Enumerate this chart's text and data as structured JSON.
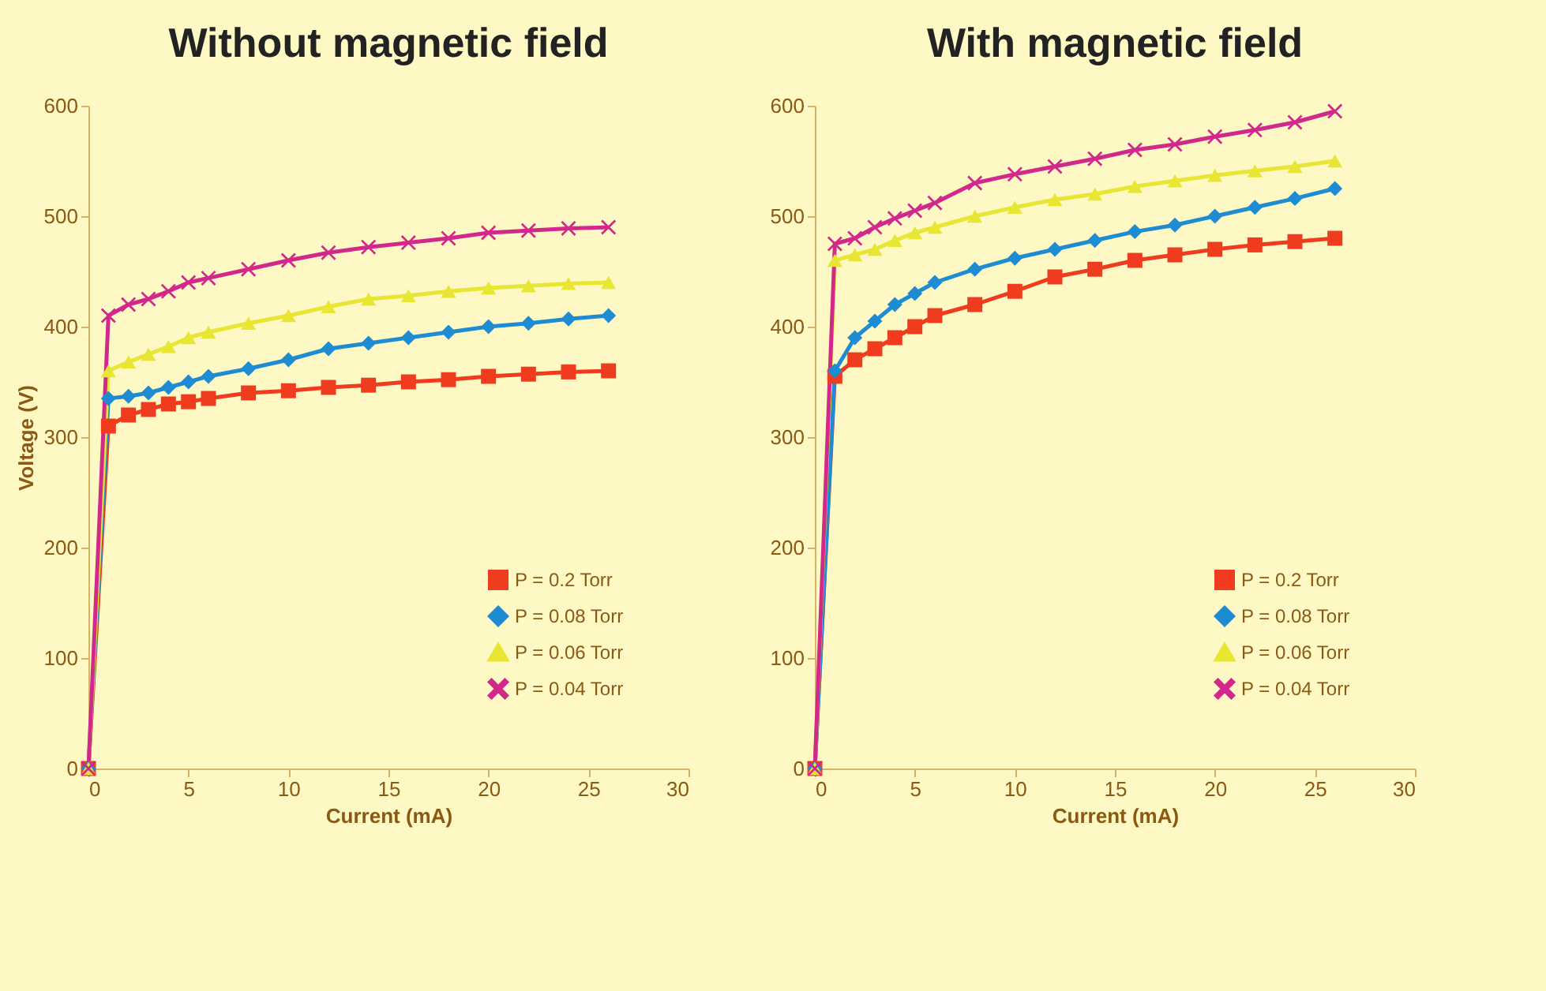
{
  "chart_data": [
    {
      "type": "line",
      "title": "Without magnetic field",
      "xlabel": "Current (mA)",
      "ylabel": "Voltage (V)",
      "x": [
        0,
        1,
        2,
        3,
        4,
        5,
        6,
        8,
        10,
        12,
        14,
        16,
        18,
        20,
        22,
        24,
        26
      ],
      "xlim": [
        0,
        30
      ],
      "xticks": [
        0,
        5,
        10,
        15,
        20,
        25,
        30
      ],
      "ylim": [
        0,
        600
      ],
      "yticks": [
        0,
        100,
        200,
        300,
        400,
        500,
        600
      ],
      "legend": "bottom right",
      "series": [
        {
          "name": "P = 0.2 Torr",
          "color": "#f03c1e",
          "marker": "square",
          "values": [
            0,
            310,
            320,
            325,
            330,
            332,
            335,
            340,
            342,
            345,
            347,
            350,
            352,
            355,
            357,
            359,
            360
          ]
        },
        {
          "name": "P = 0.08 Torr",
          "color": "#1e8cd2",
          "marker": "diamond",
          "values": [
            0,
            335,
            337,
            340,
            345,
            350,
            355,
            362,
            370,
            380,
            385,
            390,
            395,
            400,
            403,
            407,
            410
          ]
        },
        {
          "name": "P = 0.06 Torr",
          "color": "#e8e632",
          "marker": "triangle",
          "values": [
            0,
            360,
            368,
            375,
            382,
            390,
            395,
            403,
            410,
            418,
            425,
            428,
            432,
            435,
            437,
            439,
            440
          ]
        },
        {
          "name": "P = 0.04 Torr",
          "color": "#d2288c",
          "marker": "cross",
          "values": [
            0,
            410,
            420,
            425,
            432,
            440,
            444,
            452,
            460,
            467,
            472,
            476,
            480,
            485,
            487,
            489,
            490
          ]
        }
      ]
    },
    {
      "type": "line",
      "title": "With magnetic field",
      "xlabel": "Current (mA)",
      "x": [
        0,
        1,
        2,
        3,
        4,
        5,
        6,
        8,
        10,
        12,
        14,
        16,
        18,
        20,
        22,
        24,
        26
      ],
      "xlim": [
        0,
        30
      ],
      "xticks": [
        0,
        5,
        10,
        15,
        20,
        25,
        30
      ],
      "ylim": [
        0,
        600
      ],
      "yticks": [
        0,
        100,
        200,
        300,
        400,
        500,
        600
      ],
      "legend": "bottom right",
      "series": [
        {
          "name": "P = 0.2 Torr",
          "color": "#f03c1e",
          "marker": "square",
          "values": [
            0,
            355,
            370,
            380,
            390,
            400,
            410,
            420,
            432,
            445,
            452,
            460,
            465,
            470,
            474,
            477,
            480
          ]
        },
        {
          "name": "P = 0.08 Torr",
          "color": "#1e8cd2",
          "marker": "diamond",
          "values": [
            0,
            360,
            390,
            405,
            420,
            430,
            440,
            452,
            462,
            470,
            478,
            486,
            492,
            500,
            508,
            516,
            525
          ]
        },
        {
          "name": "P = 0.06 Torr",
          "color": "#e8e632",
          "marker": "triangle",
          "values": [
            0,
            460,
            465,
            470,
            478,
            485,
            490,
            500,
            508,
            515,
            520,
            527,
            532,
            537,
            541,
            545,
            550
          ]
        },
        {
          "name": "P = 0.04 Torr",
          "color": "#d2288c",
          "marker": "cross",
          "values": [
            0,
            475,
            480,
            490,
            498,
            505,
            512,
            530,
            538,
            545,
            552,
            560,
            565,
            572,
            578,
            585,
            595
          ]
        }
      ]
    }
  ]
}
